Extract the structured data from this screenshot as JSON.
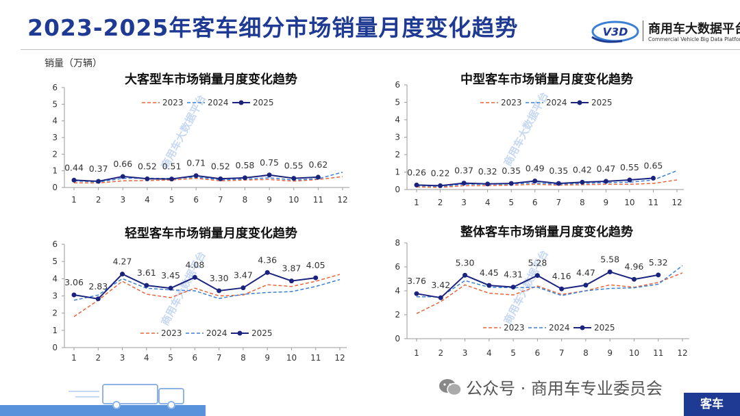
{
  "header": {
    "title": "2023-2025年客车细分市场销量月度变化趋势",
    "logo_cn": "商用车大数据平台",
    "logo_en": "Commercial Vehicle Big Data Platform",
    "logo_badge": "V3D"
  },
  "unit_label": "销量（万辆）",
  "watermark": "商用车大数据平台",
  "footer": {
    "wechat_text": "公众号 · 商用车专业委员会",
    "tag": "客车"
  },
  "colors": {
    "s2023": "#e8643a",
    "s2024": "#3a7fd5",
    "s2025": "#1a237e",
    "title": "#1f3a93"
  },
  "chart_data": [
    {
      "type": "line",
      "title": "大客型车市场销量月度变化趋势",
      "x": [
        1,
        2,
        3,
        4,
        5,
        6,
        7,
        8,
        9,
        10,
        11,
        12
      ],
      "ylim": [
        0,
        6
      ],
      "yticks": [
        0,
        1,
        2,
        3,
        4,
        5,
        6
      ],
      "series": [
        {
          "name": "2023",
          "values": [
            0.28,
            0.27,
            0.4,
            0.42,
            0.45,
            0.55,
            0.4,
            0.45,
            0.48,
            0.38,
            0.48,
            0.65
          ]
        },
        {
          "name": "2024",
          "values": [
            0.4,
            0.33,
            0.55,
            0.56,
            0.54,
            0.62,
            0.47,
            0.5,
            0.58,
            0.45,
            0.52,
            0.92
          ]
        },
        {
          "name": "2025",
          "values": [
            0.44,
            0.37,
            0.66,
            0.52,
            0.51,
            0.71,
            0.52,
            0.58,
            0.75,
            0.55,
            0.62,
            null
          ]
        }
      ],
      "labels": [
        "0.44",
        "0.37",
        "0.66",
        "0.52",
        "0.51",
        "0.71",
        "0.52",
        "0.58",
        "0.75",
        "0.55",
        "0.62"
      ],
      "legend": "top-center"
    },
    {
      "type": "line",
      "title": "中型客车市场销量月度变化趋势",
      "x": [
        1,
        2,
        3,
        4,
        5,
        6,
        7,
        8,
        9,
        10,
        11,
        12
      ],
      "ylim": [
        0,
        6
      ],
      "yticks": [
        0,
        1,
        2,
        3,
        4,
        5,
        6
      ],
      "series": [
        {
          "name": "2023",
          "values": [
            0.15,
            0.12,
            0.22,
            0.22,
            0.25,
            0.3,
            0.25,
            0.28,
            0.3,
            0.3,
            0.35,
            0.55
          ]
        },
        {
          "name": "2024",
          "values": [
            0.22,
            0.18,
            0.3,
            0.3,
            0.32,
            0.38,
            0.3,
            0.35,
            0.4,
            0.42,
            0.55,
            1.08
          ]
        },
        {
          "name": "2025",
          "values": [
            0.26,
            0.22,
            0.37,
            0.32,
            0.35,
            0.49,
            0.35,
            0.42,
            0.47,
            0.55,
            0.65,
            null
          ]
        }
      ],
      "labels": [
        "0.26",
        "0.22",
        "0.37",
        "0.32",
        "0.35",
        "0.49",
        "0.35",
        "0.42",
        "0.47",
        "0.55",
        "0.65"
      ],
      "legend": "top-center"
    },
    {
      "type": "line",
      "title": "轻型客车市场销量月度变化趋势",
      "x": [
        1,
        2,
        3,
        4,
        5,
        6,
        7,
        8,
        9,
        10,
        11,
        12
      ],
      "ylim": [
        0,
        6
      ],
      "yticks": [
        0,
        1,
        2,
        3,
        4,
        5,
        6
      ],
      "series": [
        {
          "name": "2023",
          "values": [
            1.8,
            2.75,
            3.85,
            3.1,
            2.9,
            3.45,
            3.0,
            3.05,
            3.65,
            3.55,
            3.85,
            4.25
          ]
        },
        {
          "name": "2024",
          "values": [
            2.75,
            3.05,
            4.0,
            3.45,
            3.35,
            3.3,
            2.85,
            3.1,
            3.2,
            3.25,
            3.55,
            3.95
          ]
        },
        {
          "name": "2025",
          "values": [
            3.06,
            2.83,
            4.27,
            3.61,
            3.45,
            4.08,
            3.3,
            3.47,
            4.36,
            3.87,
            4.05,
            null
          ]
        }
      ],
      "labels": [
        "3.06",
        "2.83",
        "4.27",
        "3.61",
        "3.45",
        "4.08",
        "3.30",
        "3.47",
        "4.36",
        "3.87",
        "4.05"
      ],
      "legend": "bottom-center"
    },
    {
      "type": "line",
      "title": "整体客车市场销量月度变化趋势",
      "x": [
        1,
        2,
        3,
        4,
        5,
        6,
        7,
        8,
        9,
        10,
        11,
        12
      ],
      "ylim": [
        0,
        8
      ],
      "yticks": [
        0,
        2,
        4,
        6,
        8
      ],
      "series": [
        {
          "name": "2023",
          "values": [
            2.1,
            3.1,
            4.5,
            3.8,
            3.65,
            4.4,
            3.7,
            4.0,
            4.5,
            4.3,
            4.7,
            5.5
          ]
        },
        {
          "name": "2024",
          "values": [
            3.5,
            3.5,
            4.85,
            4.3,
            4.25,
            4.3,
            3.6,
            4.0,
            4.2,
            4.25,
            4.55,
            6.1
          ]
        },
        {
          "name": "2025",
          "values": [
            3.76,
            3.42,
            5.3,
            4.45,
            4.31,
            5.28,
            4.16,
            4.47,
            5.58,
            4.96,
            5.32,
            null
          ]
        }
      ],
      "labels": [
        "3.76",
        "3.42",
        "5.30",
        "4.45",
        "4.31",
        "5.28",
        "4.16",
        "4.47",
        "5.58",
        "4.96",
        "5.32"
      ],
      "legend": "bottom-center"
    }
  ]
}
